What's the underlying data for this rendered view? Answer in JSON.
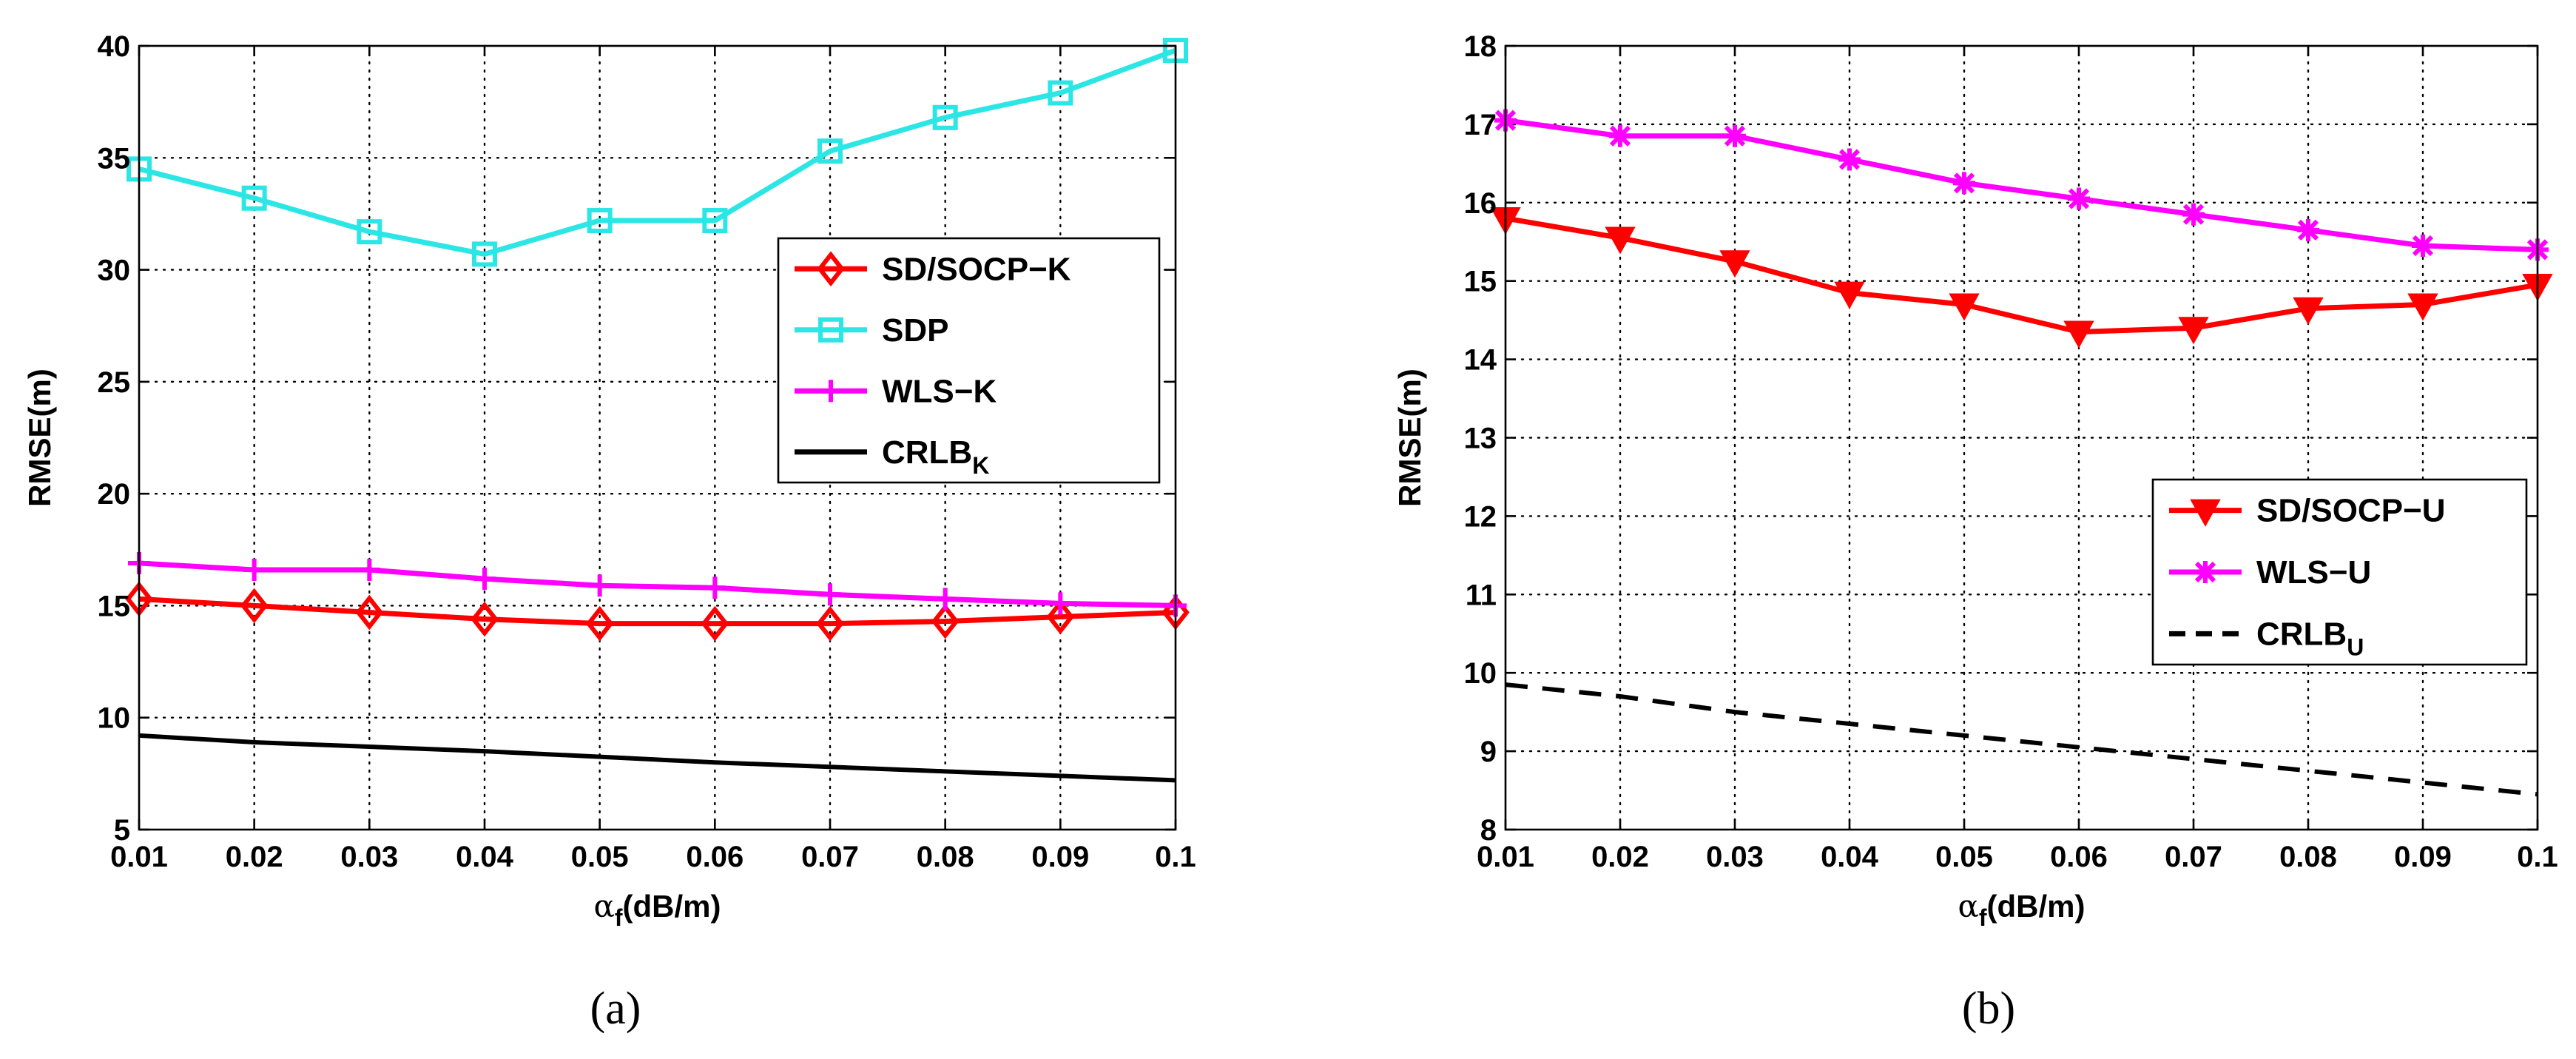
{
  "chart_data": [
    {
      "type": "line",
      "caption": "(a)",
      "xlabel": "α_f(dB/m)",
      "xlabel_parts": {
        "symbol": "α",
        "sub": "f",
        "rest": "(dB/m)"
      },
      "ylabel": "RMSE(m)",
      "xlim": [
        0.01,
        0.1
      ],
      "ylim": [
        5,
        40
      ],
      "xticks": [
        "0.01",
        "0.02",
        "0.03",
        "0.04",
        "0.05",
        "0.06",
        "0.07",
        "0.08",
        "0.09",
        "0.1"
      ],
      "yticks": [
        "5",
        "10",
        "15",
        "20",
        "25",
        "30",
        "35",
        "40"
      ],
      "grid": true,
      "legend_position": "right",
      "x": [
        0.01,
        0.02,
        0.03,
        0.04,
        0.05,
        0.06,
        0.07,
        0.08,
        0.09,
        0.1
      ],
      "series": [
        {
          "name": "SD/SOCP−K",
          "color": "#ff0000",
          "marker": "diamond",
          "dash": "solid",
          "values": [
            15.3,
            15.0,
            14.7,
            14.4,
            14.2,
            14.2,
            14.2,
            14.3,
            14.5,
            14.7
          ]
        },
        {
          "name": "SDP",
          "color": "#2ce6e6",
          "marker": "square",
          "dash": "solid",
          "values": [
            34.5,
            33.2,
            31.7,
            30.7,
            32.2,
            32.2,
            35.3,
            36.8,
            37.9,
            39.8
          ]
        },
        {
          "name": "WLS−K",
          "color": "#ff00ff",
          "marker": "plus",
          "dash": "solid",
          "values": [
            16.9,
            16.6,
            16.6,
            16.2,
            15.9,
            15.8,
            15.5,
            15.3,
            15.1,
            15.0
          ]
        },
        {
          "name": "CRLB",
          "name_sub": "K",
          "color": "#000000",
          "marker": "none",
          "dash": "solid",
          "values": [
            9.2,
            8.9,
            8.7,
            8.5,
            8.25,
            8.0,
            7.8,
            7.6,
            7.4,
            7.2
          ]
        }
      ]
    },
    {
      "type": "line",
      "caption": "(b)",
      "xlabel": "α_f(dB/m)",
      "xlabel_parts": {
        "symbol": "α",
        "sub": "f",
        "rest": "(dB/m)"
      },
      "ylabel": "RMSE(m)",
      "xlim": [
        0.01,
        0.1
      ],
      "ylim": [
        8,
        18
      ],
      "xticks": [
        "0.01",
        "0.02",
        "0.03",
        "0.04",
        "0.05",
        "0.06",
        "0.07",
        "0.08",
        "0.09",
        "0.1"
      ],
      "yticks": [
        "8",
        "9",
        "10",
        "11",
        "12",
        "13",
        "14",
        "15",
        "16",
        "17",
        "18"
      ],
      "grid": true,
      "legend_position": "right",
      "x": [
        0.01,
        0.02,
        0.03,
        0.04,
        0.05,
        0.06,
        0.07,
        0.08,
        0.09,
        0.1
      ],
      "series": [
        {
          "name": "SD/SOCP−U",
          "color": "#ff0000",
          "marker": "triangle-down",
          "dash": "solid",
          "values": [
            15.8,
            15.55,
            15.25,
            14.85,
            14.7,
            14.35,
            14.4,
            14.65,
            14.7,
            14.95
          ]
        },
        {
          "name": "WLS−U",
          "color": "#ff00ff",
          "marker": "star",
          "dash": "solid",
          "values": [
            17.05,
            16.85,
            16.85,
            16.55,
            16.25,
            16.05,
            15.85,
            15.65,
            15.45,
            15.4
          ]
        },
        {
          "name": "CRLB",
          "name_sub": "U",
          "color": "#000000",
          "marker": "none",
          "dash": "dashed",
          "values": [
            9.85,
            9.7,
            9.5,
            9.35,
            9.2,
            9.05,
            8.9,
            8.75,
            8.6,
            8.45
          ]
        }
      ]
    }
  ]
}
